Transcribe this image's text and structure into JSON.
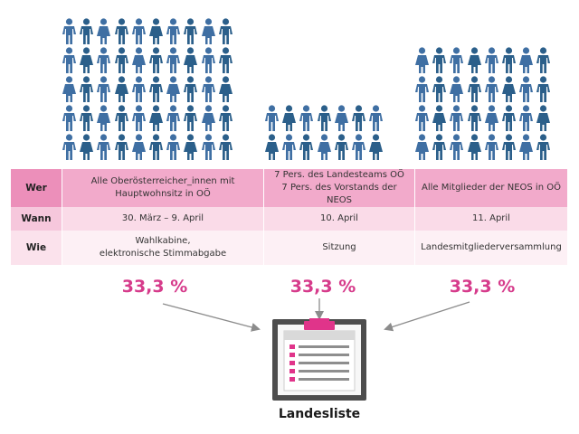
{
  "table": {
    "rows": [
      {
        "header": "Wer",
        "cells": [
          [
            "Alle Oberösterreicher_innen mit",
            "Hauptwohnsitz in OÖ"
          ],
          [
            "7 Pers. des Landesteams OÖ",
            "7 Pers. des Vorstands der NEOS"
          ],
          [
            "Alle Mitglieder der NEOS in OÖ"
          ]
        ]
      },
      {
        "header": "Wann",
        "cells": [
          [
            "30. März – 9. April"
          ],
          [
            "10. April"
          ],
          [
            "11. April"
          ]
        ]
      },
      {
        "header": "Wie",
        "cells": [
          [
            "Wahlkabine,",
            "elektronische Stimmabgabe"
          ],
          [
            "Sitzung"
          ],
          [
            "Landesmitgliederversammlung"
          ]
        ]
      }
    ]
  },
  "shares": [
    "33,3 %",
    "33,3 %",
    "33,3 %"
  ],
  "result": {
    "label": "Landesliste"
  },
  "colors": {
    "accent": "#d63b8b",
    "people": [
      "#1f9e9a",
      "#e75b7a",
      "#7ac2c5",
      "#2b5f8a",
      "#ea8a4d",
      "#c6b18f",
      "#7a3b3b",
      "#3a3a3a",
      "#f3c93d",
      "#9aa8b5",
      "#3f6fa3",
      "#e8a0a8",
      "#4fb3c8",
      "#a23b5a"
    ]
  },
  "icons": [
    "people-crowd-icon",
    "ballot-list-icon"
  ]
}
